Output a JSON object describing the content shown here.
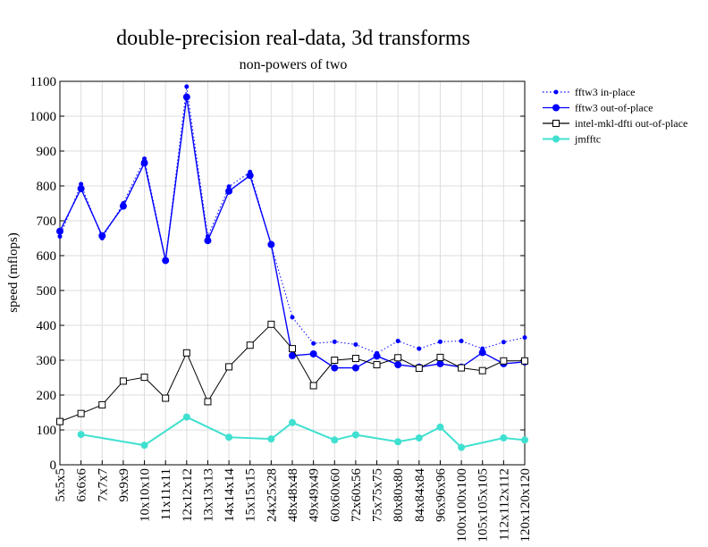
{
  "chart_data": {
    "type": "line",
    "title": "double-precision real-data, 3d transforms",
    "subtitle": "non-powers of two",
    "xlabel": "",
    "ylabel": "speed (mflops)",
    "ylim": [
      0,
      1100
    ],
    "yticks": [
      0,
      100,
      200,
      300,
      400,
      500,
      600,
      700,
      800,
      900,
      1000,
      1100
    ],
    "grid": true,
    "legend_position": "right",
    "categories": [
      "5x5x5",
      "6x6x6",
      "7x7x7",
      "9x9x9",
      "10x10x10",
      "11x11x11",
      "12x12x12",
      "13x13x13",
      "14x14x14",
      "15x15x15",
      "24x25x28",
      "48x48x48",
      "49x49x49",
      "60x60x60",
      "72x60x56",
      "75x75x75",
      "80x80x80",
      "84x84x84",
      "96x96x96",
      "100x100x100",
      "105x105x105",
      "112x112x112",
      "120x120x120"
    ],
    "series": [
      {
        "name": "fftw3 in-place",
        "color": "#0000ff",
        "style": "dotted",
        "marker": "small-dot",
        "values": [
          655,
          805,
          650,
          750,
          878,
          588,
          1085,
          655,
          798,
          840,
          630,
          423,
          348,
          353,
          345,
          320,
          355,
          333,
          353,
          355,
          333,
          352,
          365
        ]
      },
      {
        "name": "fftw3 out-of-place",
        "color": "#0000ff",
        "style": "solid",
        "marker": "dot",
        "values": [
          670,
          792,
          657,
          742,
          866,
          586,
          1055,
          643,
          785,
          830,
          632,
          313,
          318,
          278,
          278,
          312,
          287,
          280,
          290,
          280,
          322,
          290,
          295
        ]
      },
      {
        "name": "intel-mkl-dfti out-of-place",
        "color": "#000000",
        "style": "solid",
        "marker": "open-square",
        "values": [
          124,
          147,
          172,
          240,
          251,
          191,
          321,
          181,
          281,
          343,
          403,
          333,
          227,
          300,
          305,
          287,
          307,
          277,
          308,
          278,
          270,
          298,
          298
        ]
      },
      {
        "name": "jmfftc",
        "color": "#40e0d0",
        "style": "solid",
        "marker": "dot",
        "values": [
          null,
          87,
          null,
          null,
          56,
          null,
          137,
          null,
          79,
          null,
          74,
          121,
          null,
          71,
          86,
          null,
          66,
          77,
          108,
          50,
          null,
          77,
          71
        ]
      }
    ]
  }
}
